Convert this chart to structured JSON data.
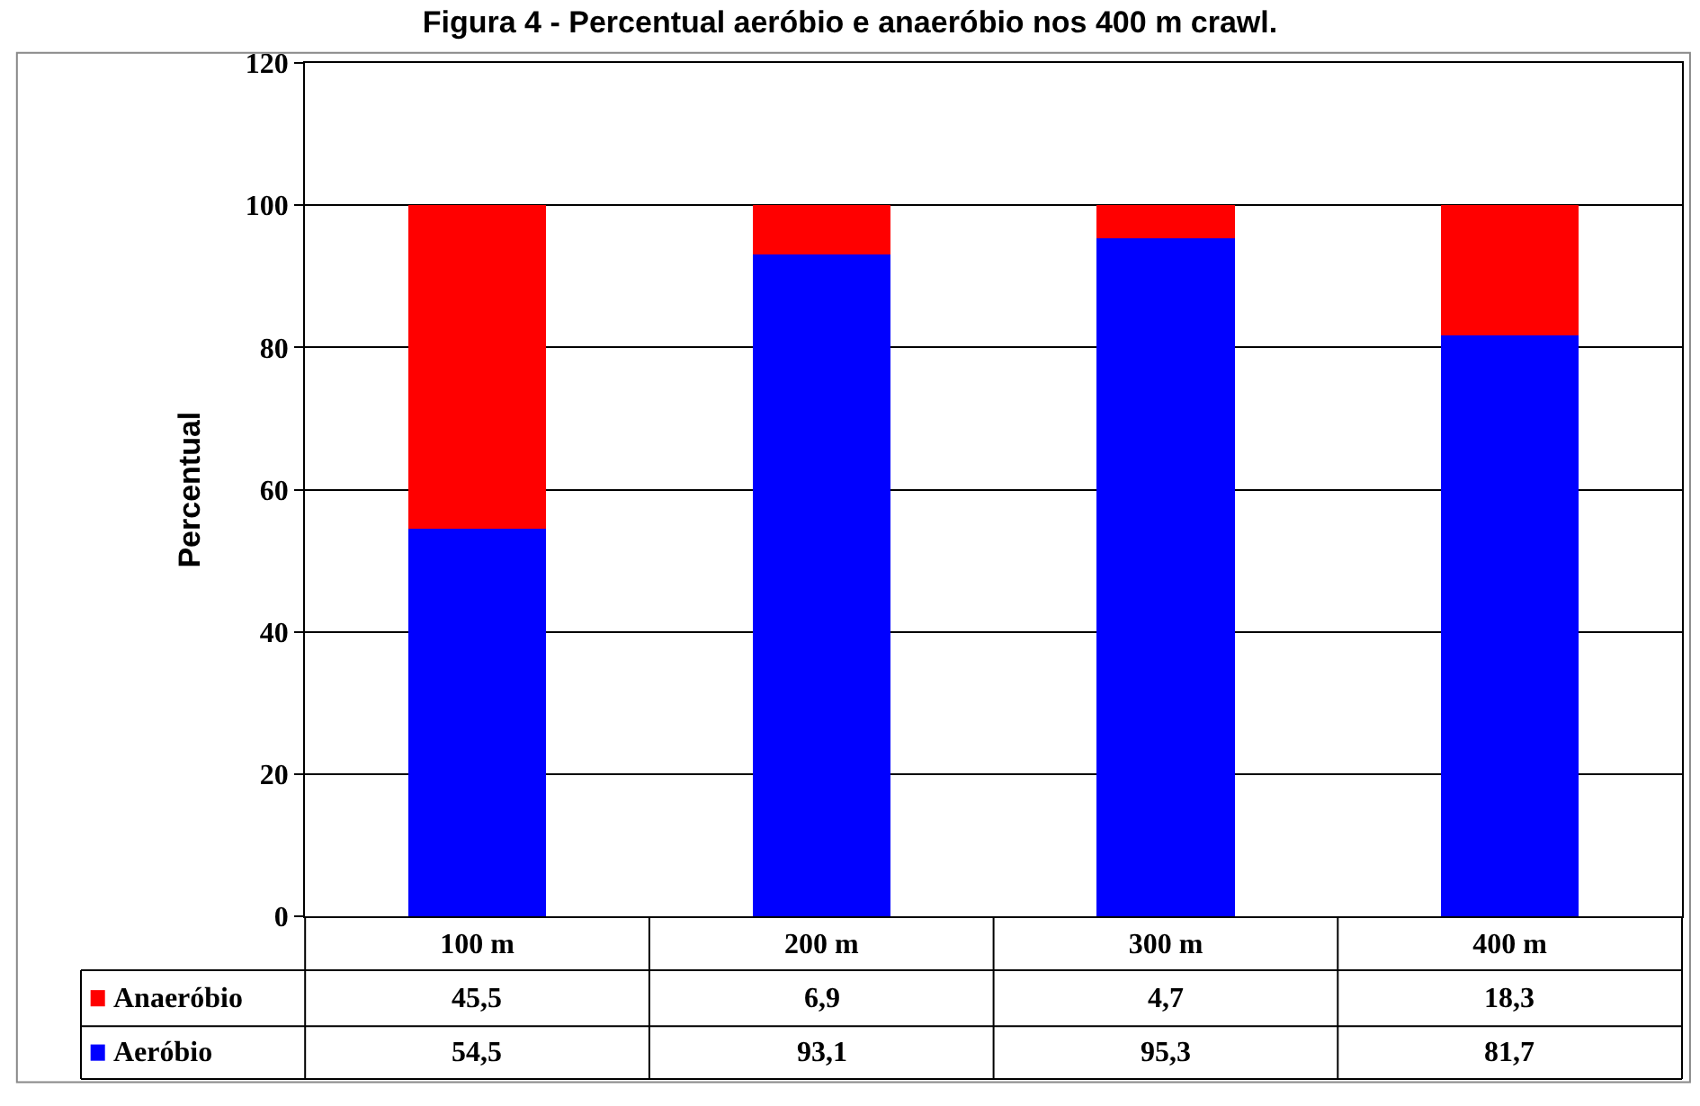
{
  "chart_data": {
    "type": "bar",
    "stacked": true,
    "title": "Figura 4 - Percentual aeróbio e anaeróbio nos 400 m crawl.",
    "ylabel": "Percentual",
    "categories": [
      "100 m",
      "200 m",
      "300 m",
      "400 m"
    ],
    "series": [
      {
        "name": "Aeróbio",
        "color": "#0000ff",
        "values": [
          54.5,
          93.1,
          95.3,
          81.7
        ],
        "value_labels": [
          "54,5",
          "93,1",
          "95,3",
          "81,7"
        ]
      },
      {
        "name": "Anaeróbio",
        "color": "#ff0000",
        "values": [
          45.5,
          6.9,
          4.7,
          18.3
        ],
        "value_labels": [
          "45,5",
          "6,9",
          "4,7",
          "18,3"
        ]
      }
    ],
    "ylim": [
      0,
      120
    ],
    "yticks": [
      0,
      20,
      40,
      60,
      80,
      100,
      120
    ],
    "grid": "y",
    "legend": "bottom"
  }
}
